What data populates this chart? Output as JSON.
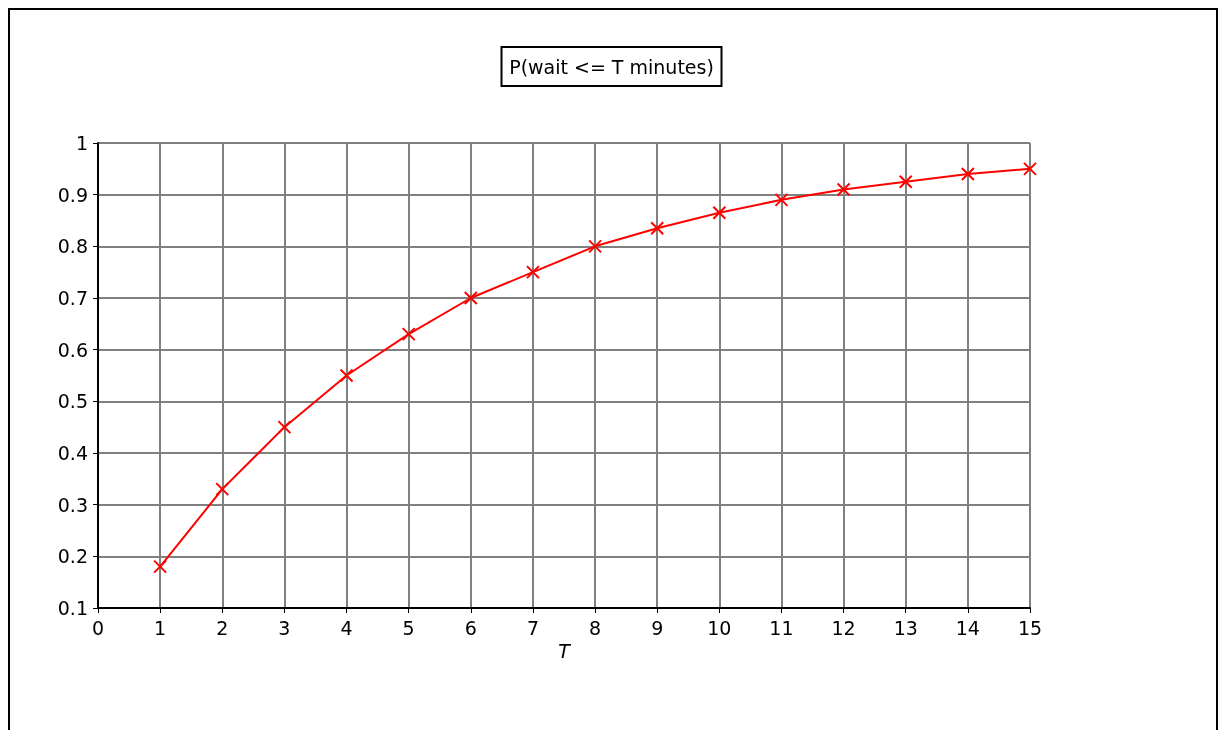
{
  "chart_data": {
    "type": "line",
    "title": "P(wait <= T minutes)",
    "xlabel": "T",
    "x": [
      1,
      2,
      3,
      4,
      5,
      6,
      7,
      8,
      9,
      10,
      11,
      12,
      13,
      14,
      15
    ],
    "series": [
      {
        "color": "#ff0000",
        "values": [
          0.18,
          0.33,
          0.45,
          0.55,
          0.63,
          0.7,
          0.75,
          0.8,
          0.835,
          0.865,
          0.89,
          0.91,
          0.925,
          0.94,
          0.95
        ]
      }
    ],
    "xlim": [
      0,
      15
    ],
    "xticks": [
      0,
      1,
      2,
      3,
      4,
      5,
      6,
      7,
      8,
      9,
      10,
      11,
      12,
      13,
      14,
      15
    ],
    "ylim": [
      0.1,
      1
    ],
    "yticks": [
      0.1,
      0.2,
      0.3,
      0.4,
      0.5,
      0.6,
      0.7,
      0.8,
      0.9,
      1
    ],
    "grid": true,
    "marker": "cross",
    "line_style": "solid"
  }
}
